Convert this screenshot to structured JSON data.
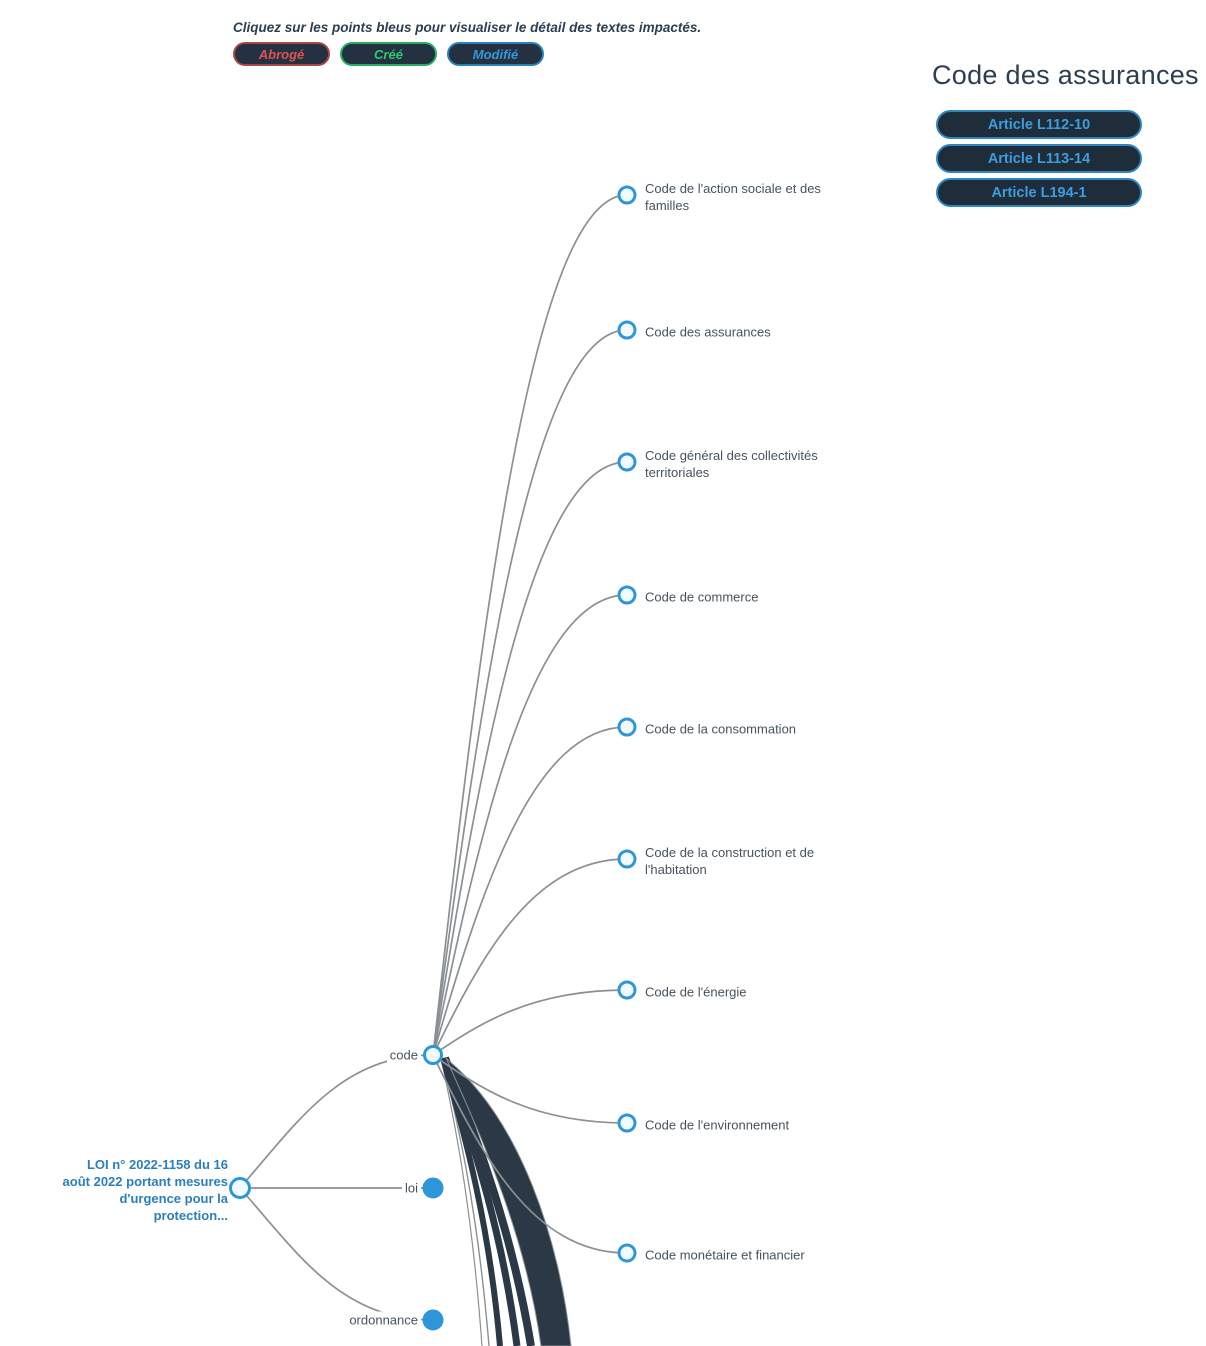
{
  "instruction": "Cliquez sur les points bleus pour visualiser le détail des textes impactés.",
  "legend": {
    "items": [
      {
        "label": "Abrogé",
        "status": "abroge",
        "color": "#e05252",
        "border": "#a94646"
      },
      {
        "label": "Créé",
        "status": "cree",
        "color": "#2ecc71",
        "border": "#27ae60"
      },
      {
        "label": "Modifié",
        "status": "modifie",
        "color": "#3498db",
        "border": "#2980b9"
      }
    ]
  },
  "detail_panel": {
    "title": "Code des assurances",
    "articles": [
      {
        "label": "Article L112-10"
      },
      {
        "label": "Article L113-14"
      },
      {
        "label": "Article L194-1"
      }
    ]
  },
  "diagram": {
    "type": "collapsible-tree",
    "root": {
      "label": "LOI n° 2022-1158 du 16 août 2022 portant mesures d'urgence pour la protection...",
      "state": "expanded"
    },
    "branches": [
      {
        "label": "code",
        "state": "expanded",
        "children": [
          "Code de l'action sociale et des familles",
          "Code des assurances",
          "Code général des collectivités territoriales",
          "Code de commerce",
          "Code de la consommation",
          "Code de la construction et de l'habitation",
          "Code de l'énergie",
          "Code de l'environnement",
          "Code monétaire et financier"
        ],
        "has_offscreen_children_bundle": true
      },
      {
        "label": "loi",
        "state": "collapsed"
      },
      {
        "label": "ordonnance",
        "state": "collapsed"
      }
    ],
    "colors": {
      "node_stroke": "#2d96d8",
      "node_fill": "#f3faff",
      "node_fill_collapsed": "#2d96d8",
      "link": "#8b9094",
      "bundle": "#2b3947",
      "label": "#46535f",
      "root_label": "#2b7fbe"
    }
  }
}
